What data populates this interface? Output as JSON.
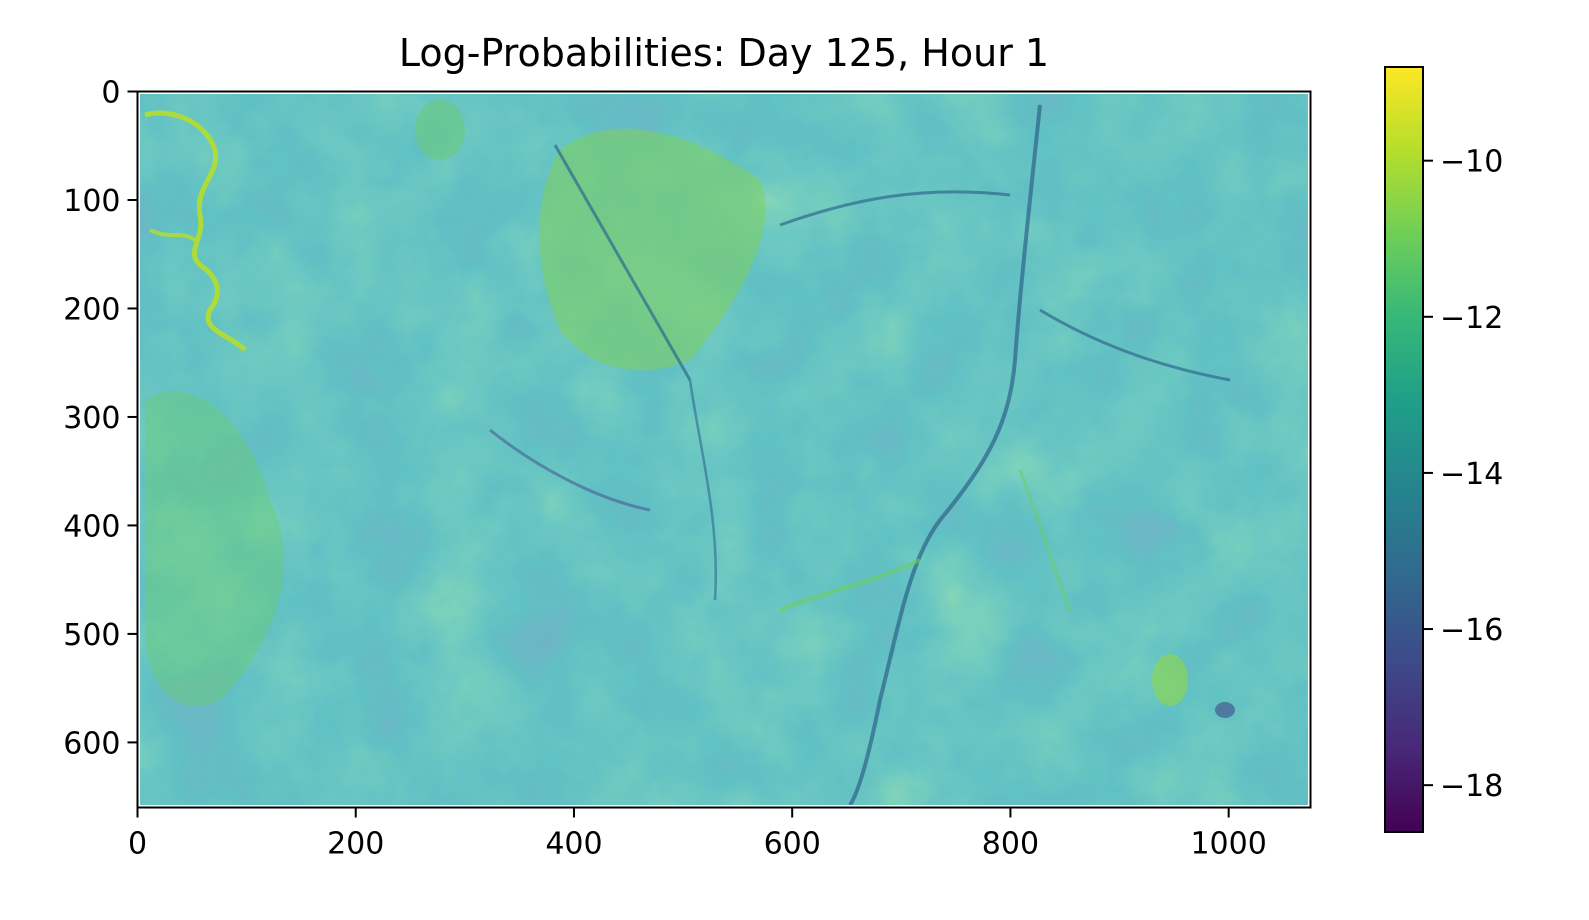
{
  "chart_data": {
    "type": "heatmap",
    "title": "Log-Probabilities: Day 125, Hour 1",
    "xlabel": "",
    "ylabel": "",
    "xlim": [
      0,
      1075
    ],
    "ylim": [
      660,
      0
    ],
    "x_ticks": [
      0,
      200,
      400,
      600,
      800,
      1000
    ],
    "x_tick_labels": [
      "0",
      "200",
      "400",
      "600",
      "800",
      "1000"
    ],
    "y_ticks": [
      0,
      100,
      200,
      300,
      400,
      500,
      600
    ],
    "y_tick_labels": [
      "0",
      "100",
      "200",
      "300",
      "400",
      "500",
      "600"
    ],
    "colormap": "viridis",
    "colorbar": {
      "range": [
        -18.6,
        -8.8
      ],
      "ticks": [
        -10,
        -12,
        -14,
        -16,
        -18
      ],
      "tick_labels": [
        "−10",
        "−12",
        "−14",
        "−16",
        "−18"
      ]
    },
    "colormap_stops": [
      "#440154",
      "#482878",
      "#3e4989",
      "#31688e",
      "#26828e",
      "#1f9e89",
      "#35b779",
      "#6ece58",
      "#b5de2b",
      "#fde725"
    ],
    "typical_value": -13.8,
    "value_range_in_image": [
      -17.5,
      -9.5
    ],
    "grid": false
  }
}
